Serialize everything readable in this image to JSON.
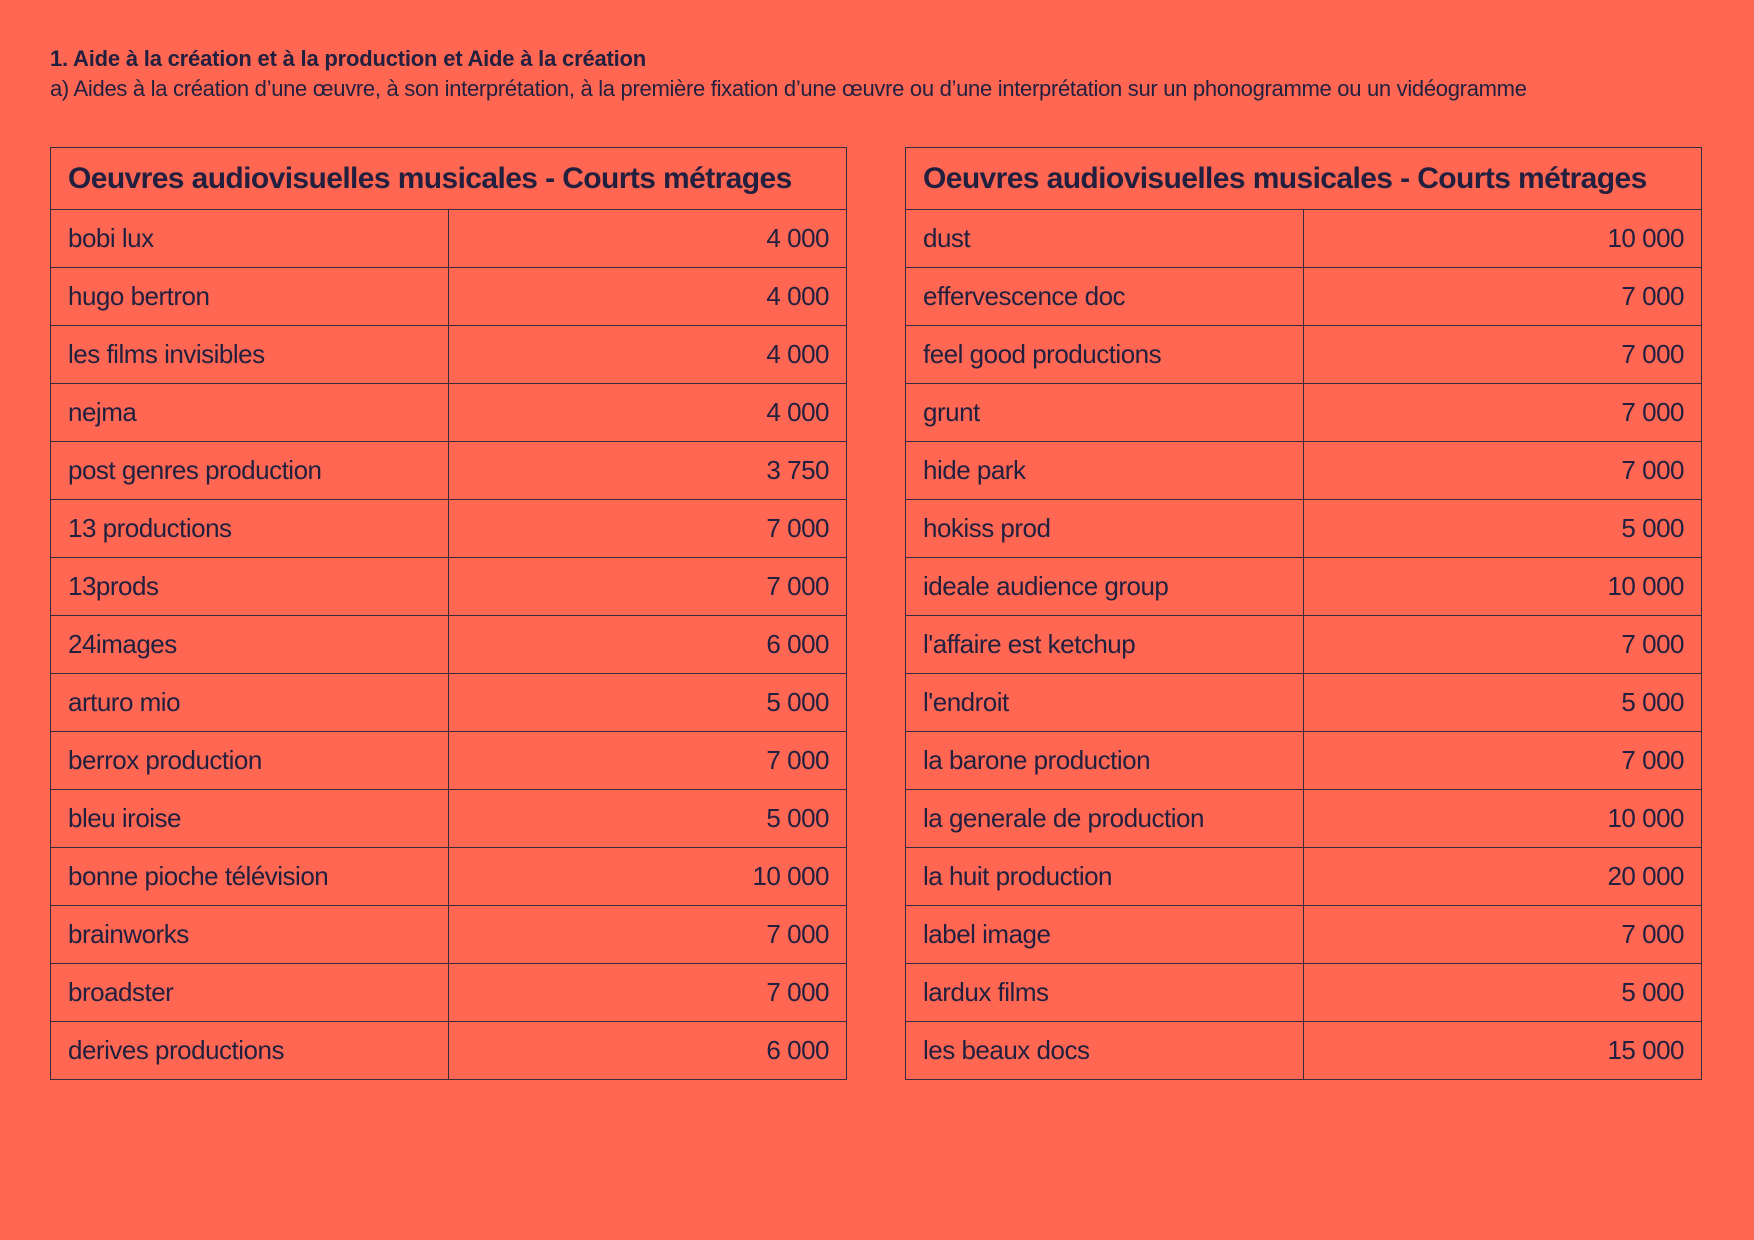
{
  "header": {
    "title": "1. Aide à la création et à la production et Aide à la création",
    "subtitle": "a) Aides à la création d’une œuvre, à son interprétation, à la première fixation d’une œuvre ou d’une interprétation sur un phonogramme ou un vidéogramme"
  },
  "tables": [
    {
      "heading": "Oeuvres audiovisuelles musicales - Courts métrages",
      "rows": [
        {
          "name": "bobi lux",
          "amount": "4 000"
        },
        {
          "name": "hugo bertron",
          "amount": "4 000"
        },
        {
          "name": "les films invisibles",
          "amount": "4 000"
        },
        {
          "name": "nejma",
          "amount": "4 000"
        },
        {
          "name": "post genres production",
          "amount": "3 750"
        },
        {
          "name": "13 productions",
          "amount": "7 000"
        },
        {
          "name": "13prods",
          "amount": "7 000"
        },
        {
          "name": "24images",
          "amount": "6 000"
        },
        {
          "name": "arturo mio",
          "amount": "5 000"
        },
        {
          "name": "berrox production",
          "amount": "7 000"
        },
        {
          "name": "bleu iroise",
          "amount": "5 000"
        },
        {
          "name": "bonne pioche télévision",
          "amount": "10 000"
        },
        {
          "name": "brainworks",
          "amount": "7 000"
        },
        {
          "name": "broadster",
          "amount": "7 000"
        },
        {
          "name": "derives productions",
          "amount": "6 000"
        }
      ]
    },
    {
      "heading": "Oeuvres audiovisuelles musicales - Courts métrages",
      "rows": [
        {
          "name": "dust",
          "amount": "10 000"
        },
        {
          "name": "effervescence doc",
          "amount": "7 000"
        },
        {
          "name": "feel good productions",
          "amount": "7 000"
        },
        {
          "name": "grunt",
          "amount": "7 000"
        },
        {
          "name": "hide park",
          "amount": "7 000"
        },
        {
          "name": "hokiss prod",
          "amount": "5 000"
        },
        {
          "name": "ideale audience group",
          "amount": "10 000"
        },
        {
          "name": "l'affaire est ketchup",
          "amount": "7 000"
        },
        {
          "name": "l'endroit",
          "amount": "5 000"
        },
        {
          "name": "la barone production",
          "amount": "7 000"
        },
        {
          "name": "la generale de production",
          "amount": "10 000"
        },
        {
          "name": "la huit production",
          "amount": "20 000"
        },
        {
          "name": "label image",
          "amount": "7 000"
        },
        {
          "name": "lardux films",
          "amount": "5 000"
        },
        {
          "name": "les beaux docs",
          "amount": "15 000"
        }
      ]
    }
  ]
}
